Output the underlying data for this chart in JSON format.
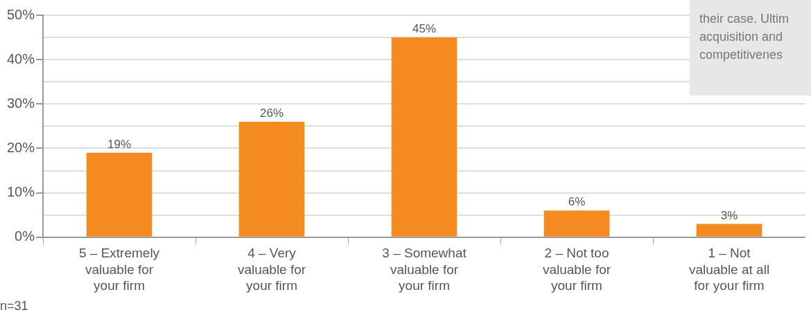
{
  "chart_data": {
    "type": "bar",
    "categories": [
      "5 – Extremely valuable for your firm",
      "4 – Very valuable for your firm",
      "3 – Somewhat valuable for your firm",
      "2 – Not too valuable for your firm",
      "1 – Not valuable at all for your firm"
    ],
    "values": [
      19,
      26,
      45,
      6,
      3
    ],
    "value_labels": [
      "19%",
      "26%",
      "45%",
      "6%",
      "3%"
    ],
    "color": "#f58a21",
    "ylim": [
      0,
      50
    ],
    "yticks": [
      {
        "value": 0,
        "label": "0%"
      },
      {
        "value": 5,
        "label": null
      },
      {
        "value": 10,
        "label": "10%"
      },
      {
        "value": 15,
        "label": null
      },
      {
        "value": 20,
        "label": "20%"
      },
      {
        "value": 25,
        "label": null
      },
      {
        "value": 30,
        "label": "30%"
      },
      {
        "value": 35,
        "label": null
      },
      {
        "value": 40,
        "label": "40%"
      },
      {
        "value": 45,
        "label": null
      },
      {
        "value": 50,
        "label": "50%"
      }
    ],
    "grid": "y",
    "annotations": [
      "their case. Ultim\nacquisition and\ncompetitivenes",
      "n=31"
    ]
  }
}
